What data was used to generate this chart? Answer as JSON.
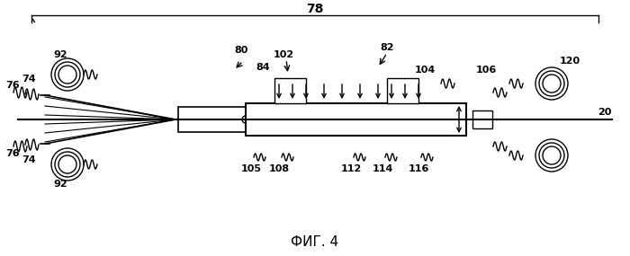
{
  "title": "ФИГ. 4",
  "label_78": "78",
  "label_80": "80",
  "label_82": "82",
  "label_84": "84",
  "label_20": "20",
  "label_74a": "74",
  "label_74b": "74",
  "label_76a": "76",
  "label_76b": "76",
  "label_92a": "92",
  "label_92b": "92",
  "label_102": "102",
  "label_104": "104",
  "label_105": "105",
  "label_106": "106",
  "label_108": "108",
  "label_112": "112",
  "label_114": "114",
  "label_116": "116",
  "label_120": "120",
  "bg_color": "#ffffff",
  "line_color": "#000000",
  "fig_width": 7.0,
  "fig_height": 2.85
}
